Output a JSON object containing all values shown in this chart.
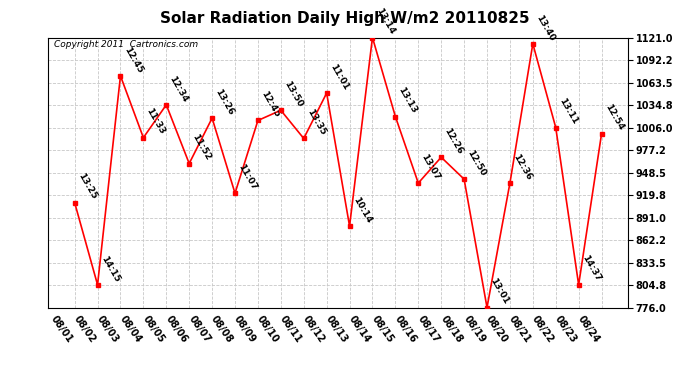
{
  "title": "Solar Radiation Daily High W/m2 20110825",
  "copyright": "Copyright 2011  Cartronics.com",
  "dates": [
    "08/01",
    "08/02",
    "08/03",
    "08/04",
    "08/05",
    "08/06",
    "08/07",
    "08/08",
    "08/09",
    "08/10",
    "08/11",
    "08/12",
    "08/13",
    "08/14",
    "08/15",
    "08/16",
    "08/17",
    "08/18",
    "08/19",
    "08/20",
    "08/21",
    "08/22",
    "08/23",
    "08/24"
  ],
  "values": [
    910,
    805,
    1072,
    993,
    1035,
    960,
    1018,
    922,
    1015,
    1028,
    992,
    1050,
    880,
    1121,
    1020,
    935,
    968,
    940,
    776,
    935,
    1113,
    1006,
    805,
    998
  ],
  "labels": [
    "13:25",
    "14:15",
    "12:45",
    "11:33",
    "12:34",
    "11:52",
    "13:26",
    "11:07",
    "12:45",
    "13:50",
    "13:35",
    "11:01",
    "10:14",
    "13:14",
    "13:13",
    "13:07",
    "12:26",
    "12:50",
    "13:01",
    "12:36",
    "13:40",
    "13:11",
    "14:37",
    "12:54"
  ],
  "ylim_min": 776.0,
  "ylim_max": 1121.0,
  "yticks": [
    776.0,
    804.8,
    833.5,
    862.2,
    891.0,
    919.8,
    948.5,
    977.2,
    1006.0,
    1034.8,
    1063.5,
    1092.2,
    1121.0
  ],
  "line_color": "red",
  "marker_color": "red",
  "bg_color": "white",
  "grid_color": "#c8c8c8",
  "title_fontsize": 11,
  "label_fontsize": 6.5,
  "copyright_fontsize": 6.5,
  "tick_fontsize": 7
}
